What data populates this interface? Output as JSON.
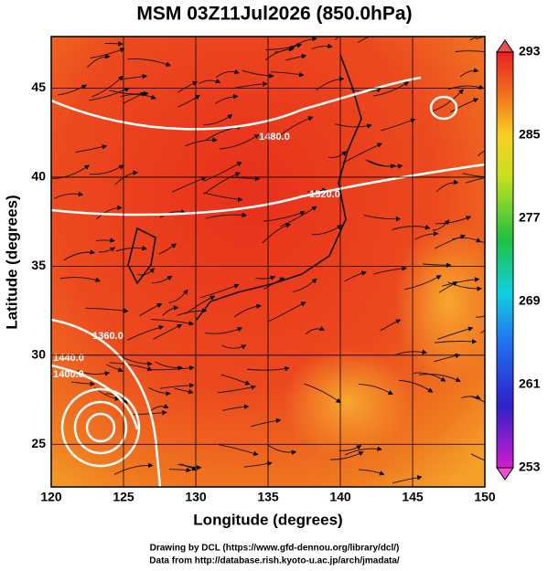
{
  "map": {
    "title": "MSM 03Z11Jul2026 (850.0hPa)",
    "x_axis": {
      "label": "Longitude (degrees)",
      "lim": [
        120,
        150
      ],
      "ticks": [
        120,
        125,
        130,
        135,
        140,
        145,
        150
      ]
    },
    "y_axis": {
      "label": "Latitude  (degrees)",
      "lim": [
        22.6,
        47.9
      ],
      "ticks": [
        25,
        30,
        35,
        40,
        45
      ]
    },
    "colorbar": {
      "lim": [
        253,
        293
      ],
      "ticks": [
        253,
        261,
        269,
        277,
        285,
        293
      ]
    },
    "contour_labels": [
      "1480.0",
      "1520.0",
      "1440.0",
      "1400.0",
      "1360.0"
    ],
    "credits": [
      "Drawing by DCL (https://www.gfd-dennou.org/library/dcl/)",
      "Data from http://database.rish.kyoto-u.ac.jp/arch/jmadata/"
    ]
  }
}
